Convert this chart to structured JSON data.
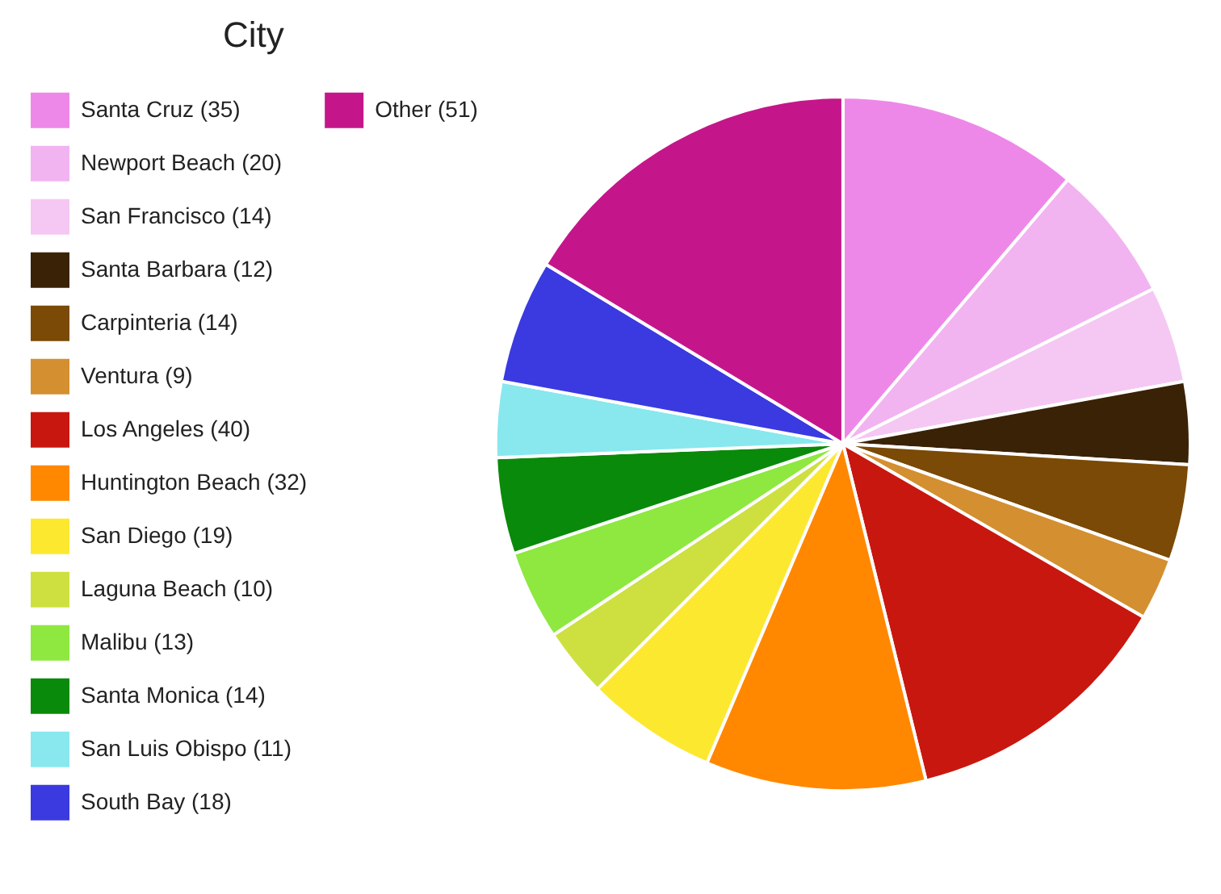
{
  "chart_data": {
    "type": "pie",
    "title": "City",
    "categories": [
      "Santa Cruz (35)",
      "Newport Beach (20)",
      "San Francisco (14)",
      "Santa Barbara (12)",
      "Carpinteria (14)",
      "Ventura (9)",
      "Los Angeles (40)",
      "Huntington Beach (32)",
      "San Diego (19)",
      "Laguna Beach (10)",
      "Malibu (13)",
      "Santa Monica (14)",
      "San Luis Obispo (11)",
      "South Bay (18)",
      "Other (51)"
    ],
    "values": [
      35,
      20,
      14,
      12,
      14,
      9,
      40,
      32,
      19,
      10,
      13,
      14,
      11,
      18,
      51
    ],
    "colors": [
      "#ee88e8",
      "#f2b4f0",
      "#f5c8f3",
      "#3a2206",
      "#7a4a06",
      "#d48f30",
      "#c8170f",
      "#ff8800",
      "#fde830",
      "#cde040",
      "#8ee840",
      "#0a8a0a",
      "#88e8ee",
      "#3a3ae0",
      "#c4168a"
    ],
    "legend": "left"
  }
}
